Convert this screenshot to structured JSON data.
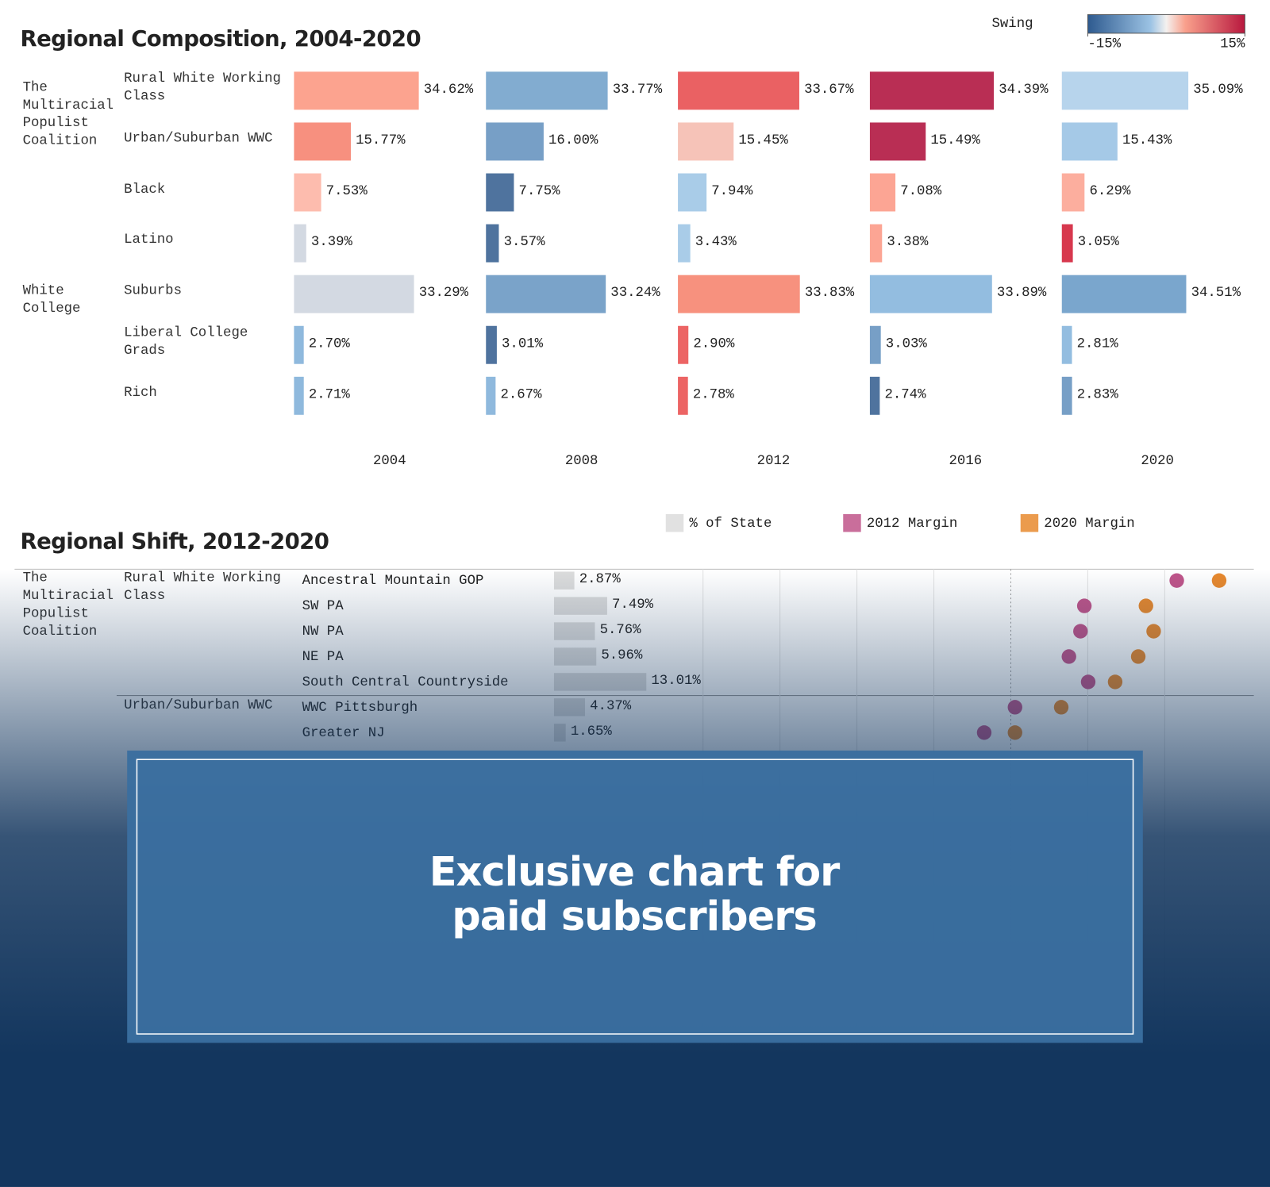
{
  "chart_data": [
    {
      "type": "bar",
      "title": "Regional Composition, 2004-2020",
      "groups": [
        "The Multiracial Populist Coalition",
        null,
        null,
        null,
        "White College",
        null,
        null
      ],
      "categories": [
        "Rural White Working Class",
        "Urban/Suburban WWC",
        "Black",
        "Latino",
        "Suburbs",
        "Liberal College Grads",
        "Rich"
      ],
      "xlim": [
        0,
        50
      ],
      "colorbar": {
        "title": "Swing",
        "lim": [
          -15,
          15
        ],
        "ticks": [
          {
            "value": -15,
            "label": "-15%"
          },
          {
            "value": 15,
            "label": "15%"
          }
        ]
      },
      "series": [
        {
          "name": "2004",
          "values": [
            34.62,
            15.77,
            7.53,
            3.39,
            33.29,
            2.7,
            2.71
          ],
          "value_labels": [
            "34.62%",
            "15.77%",
            "7.53%",
            "3.39%",
            "33.29%",
            "2.70%",
            "2.71%"
          ],
          "colors": [
            "#fca38f",
            "#f7907f",
            "#fdbcae",
            "#d3d9e2",
            "#d3d9e2",
            "#8fb9dd",
            "#8fb9dd"
          ]
        },
        {
          "name": "2008",
          "values": [
            33.77,
            16.0,
            7.75,
            3.57,
            33.24,
            3.01,
            2.67
          ],
          "value_labels": [
            "33.77%",
            "16.00%",
            "7.75%",
            "3.57%",
            "33.24%",
            "3.01%",
            "2.67%"
          ],
          "colors": [
            "#82acd0",
            "#779fc6",
            "#4f739e",
            "#4f739e",
            "#7aa3c9",
            "#4f739e",
            "#8fb9dd"
          ]
        },
        {
          "name": "2012",
          "values": [
            33.67,
            15.45,
            7.94,
            3.43,
            33.83,
            2.9,
            2.78
          ],
          "value_labels": [
            "33.67%",
            "15.45%",
            "7.94%",
            "3.43%",
            "33.83%",
            "2.90%",
            "2.78%"
          ],
          "colors": [
            "#ea6163",
            "#f6c3b8",
            "#a9cce8",
            "#a9cce8",
            "#f7917e",
            "#ec6464",
            "#ec6464"
          ]
        },
        {
          "name": "2016",
          "values": [
            34.39,
            15.49,
            7.08,
            3.38,
            33.89,
            3.03,
            2.74
          ],
          "value_labels": [
            "34.39%",
            "15.49%",
            "7.08%",
            "3.38%",
            "33.89%",
            "3.03%",
            "2.74%"
          ],
          "colors": [
            "#b92e54",
            "#b92e54",
            "#fca594",
            "#fca594",
            "#93bde0",
            "#779fc6",
            "#4f739e"
          ]
        },
        {
          "name": "2020",
          "values": [
            35.09,
            15.43,
            6.29,
            3.05,
            34.51,
            2.81,
            2.83
          ],
          "value_labels": [
            "35.09%",
            "15.43%",
            "6.29%",
            "3.05%",
            "34.51%",
            "2.81%",
            "2.83%"
          ],
          "colors": [
            "#b7d4ec",
            "#a5c9e7",
            "#fcae9e",
            "#d7384e",
            "#7aa6cd",
            "#93bde0",
            "#779fc6"
          ]
        }
      ]
    },
    {
      "type": "bar_dot",
      "title": "Regional Shift, 2012-2020",
      "groups": [
        "The Multiracial Populist Coalition",
        null,
        null,
        null,
        null,
        null,
        null
      ],
      "subgroups": [
        "Rural White Working Class",
        null,
        null,
        null,
        null,
        "Urban/Suburban WWC",
        null
      ],
      "categories": [
        "Ancestral Mountain GOP",
        "SW PA",
        "NW PA",
        "NE PA",
        "South Central Countryside",
        "WWC Pittsburgh",
        "Greater NJ"
      ],
      "share": {
        "name": "% of State",
        "color": "#dcdcdc",
        "xlim": [
          0,
          21
        ],
        "values": [
          2.87,
          7.49,
          5.76,
          5.96,
          13.01,
          4.37,
          1.65
        ],
        "value_labels": [
          "2.87%",
          "7.49%",
          "5.76%",
          "5.96%",
          "13.01%",
          "4.37%",
          "1.65%"
        ]
      },
      "xlim": [
        -80,
        63
      ],
      "series": [
        {
          "name": "2012 Margin",
          "color": "#c0558a",
          "values": [
            43,
            19,
            18,
            15,
            20,
            1,
            -7
          ]
        },
        {
          "name": "2020 Margin",
          "color": "#e8892e",
          "values": [
            54,
            35,
            37,
            33,
            27,
            13,
            1
          ]
        }
      ]
    }
  ],
  "overlay": {
    "lines": [
      "Exclusive chart for",
      "paid subscribers"
    ]
  }
}
